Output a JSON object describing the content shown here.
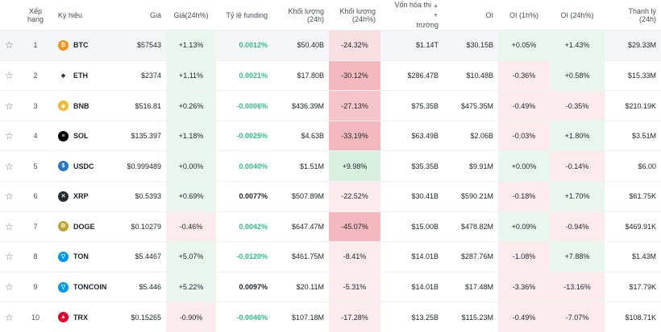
{
  "headers": {
    "star": "",
    "rank": "Xếp hạng",
    "symbol": "Ký hiệu",
    "price": "Giá",
    "price_change": "Giá(24h%)",
    "funding": "Tỷ lệ funding",
    "volume": "Khối lượng (24h)",
    "volume_change": "Khối lượng (24h%)",
    "market_cap_line1": "Vốn hóa thị",
    "market_cap_line2": "trường",
    "oi": "OI",
    "oi_1h": "OI (1h%)",
    "oi_24h": "OI (24h%)",
    "liquidation": "Thanh lý (24h)"
  },
  "rows": [
    {
      "star": "☆",
      "rank": "1",
      "symbol": "BTC",
      "icon": "btc-icon",
      "icon_color": "#f7931a",
      "icon_glyph": "₿",
      "price": "$57543",
      "price_change": "+1.13%",
      "funding": "0.0012%",
      "volume": "$50.40B",
      "volume_change": "-24.32%",
      "market_cap": "$1.14T",
      "oi": "$30.15B",
      "oi_1h": "+0.05%",
      "oi_24h": "+1.43%",
      "liquidation": "$29.33M"
    },
    {
      "star": "☆",
      "rank": "2",
      "symbol": "ETH",
      "icon": "eth-icon",
      "icon_color": "#ffffff",
      "icon_glyph": "◆",
      "price": "$2374",
      "price_change": "+1.11%",
      "funding": "0.0021%",
      "volume": "$17.80B",
      "volume_change": "-30.12%",
      "market_cap": "$286.47B",
      "oi": "$10.48B",
      "oi_1h": "-0.36%",
      "oi_24h": "+0.58%",
      "liquidation": "$15.33M"
    },
    {
      "star": "☆",
      "rank": "3",
      "symbol": "BNB",
      "icon": "bnb-icon",
      "icon_color": "#f3ba2f",
      "icon_glyph": "◈",
      "price": "$516.81",
      "price_change": "+0.26%",
      "funding": "-0.0006%",
      "volume": "$436.39M",
      "volume_change": "-27.13%",
      "market_cap": "$75.35B",
      "oi": "$475.35M",
      "oi_1h": "-0.49%",
      "oi_24h": "-0.35%",
      "liquidation": "$210.19K"
    },
    {
      "star": "☆",
      "rank": "4",
      "symbol": "SOL",
      "icon": "sol-icon",
      "icon_color": "#000000",
      "icon_glyph": "≡",
      "price": "$135.397",
      "price_change": "+1.18%",
      "funding": "-0.0025%",
      "volume": "$4.63B",
      "volume_change": "-33.19%",
      "market_cap": "$63.49B",
      "oi": "$2.06B",
      "oi_1h": "-0.03%",
      "oi_24h": "+1.80%",
      "liquidation": "$3.51M"
    },
    {
      "star": "☆",
      "rank": "5",
      "symbol": "USDC",
      "icon": "usdc-icon",
      "icon_color": "#2775ca",
      "icon_glyph": "$",
      "price": "$0.999489",
      "price_change": "+0.00%",
      "funding": "0.0040%",
      "volume": "$1.51M",
      "volume_change": "+9.98%",
      "market_cap": "$35.35B",
      "oi": "$9.91M",
      "oi_1h": "+0.00%",
      "oi_24h": "-0.14%",
      "liquidation": "$6.00"
    },
    {
      "star": "☆",
      "rank": "6",
      "symbol": "XRP",
      "icon": "xrp-icon",
      "icon_color": "#23292f",
      "icon_glyph": "✕",
      "price": "$0.5393",
      "price_change": "+0.69%",
      "funding": "0.0077%",
      "volume": "$507.89M",
      "volume_change": "-22.52%",
      "market_cap": "$30.41B",
      "oi": "$590.21M",
      "oi_1h": "-0.18%",
      "oi_24h": "+1.70%",
      "liquidation": "$61.75K"
    },
    {
      "star": "☆",
      "rank": "7",
      "symbol": "DOGE",
      "icon": "doge-icon",
      "icon_color": "#c2a633",
      "icon_glyph": "Ð",
      "price": "$0.10279",
      "price_change": "-0.46%",
      "funding": "0.0042%",
      "volume": "$647.47M",
      "volume_change": "-45.07%",
      "market_cap": "$15.00B",
      "oi": "$478.82M",
      "oi_1h": "+0.09%",
      "oi_24h": "-0.94%",
      "liquidation": "$469.91K"
    },
    {
      "star": "☆",
      "rank": "8",
      "symbol": "TON",
      "icon": "ton-icon",
      "icon_color": "#0098ea",
      "icon_glyph": "▽",
      "price": "$5.4467",
      "price_change": "+5.07%",
      "funding": "-0.0120%",
      "volume": "$461.75M",
      "volume_change": "-8.41%",
      "market_cap": "$14.01B",
      "oi": "$287.76M",
      "oi_1h": "-1.08%",
      "oi_24h": "+7.88%",
      "liquidation": "$1.43M"
    },
    {
      "star": "☆",
      "rank": "9",
      "symbol": "TONCOIN",
      "icon": "toncoin-icon",
      "icon_color": "#0098ea",
      "icon_glyph": "▽",
      "price": "$5.446",
      "price_change": "+5.22%",
      "funding": "0.0097%",
      "volume": "$20.11M",
      "volume_change": "-5.31%",
      "market_cap": "$14.01B",
      "oi": "$17.48M",
      "oi_1h": "-3.36%",
      "oi_24h": "-13.16%",
      "liquidation": "$17.79K"
    },
    {
      "star": "☆",
      "rank": "10",
      "symbol": "TRX",
      "icon": "trx-icon",
      "icon_color": "#eb0029",
      "icon_glyph": "▲",
      "price": "$0.15265",
      "price_change": "-0.90%",
      "funding": "-0.0046%",
      "volume": "$107.18M",
      "volume_change": "-17.28%",
      "market_cap": "$13.25B",
      "oi": "$115.23M",
      "oi_1h": "-0.49%",
      "oi_24h": "-7.07%",
      "liquidation": "$108.71K"
    }
  ],
  "sort_icon": "sort-icon"
}
